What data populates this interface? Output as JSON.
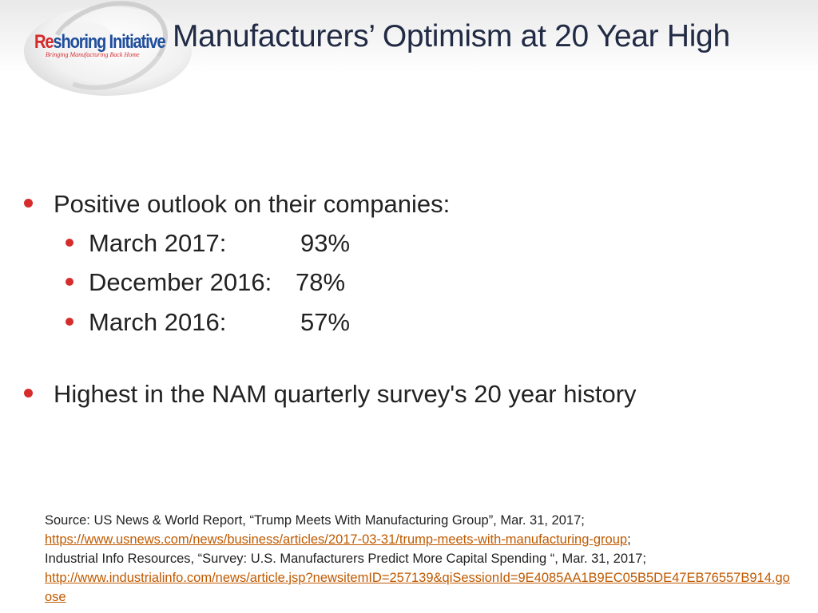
{
  "brand": {
    "logo_main_red": "Re",
    "logo_main_rest": "shoring Initiative",
    "logo_tagline": "Bringing Manufacturing Back Home"
  },
  "title": "Manufacturers’ Optimism at 20 Year High",
  "bullets": [
    {
      "text": "Positive outlook on their companies:",
      "sub": [
        {
          "label": "March 2017:",
          "value": "93%"
        },
        {
          "label": "December 2016:",
          "value": "78%"
        },
        {
          "label": "March 2016:",
          "value": "57%"
        }
      ]
    },
    {
      "text": "Highest in the NAM quarterly survey's 20 year history"
    }
  ],
  "source": {
    "line1": "Source: US News & World Report, “Trump Meets With Manufacturing Group”, Mar. 31, 2017;",
    "link1": "https://www.usnews.com/news/business/articles/2017-03-31/trump-meets-with-manufacturing-group",
    "sep1": ";",
    "line2": "Industrial Info Resources, “Survey: U.S. Manufacturers Predict More Capital Spending “, Mar. 31, 2017;",
    "link2": "http://www.industrialinfo.com/news/article.jsp?newsitemID=257139&qiSessionId=9E4085AA1B9EC05B5DE47EB76557B914.goose"
  },
  "colors": {
    "bullet": "#d62c2c",
    "link": "#c05a00",
    "title": "#222b45",
    "logo_blue": "#1f4e9c",
    "logo_red": "#d42a2a"
  }
}
